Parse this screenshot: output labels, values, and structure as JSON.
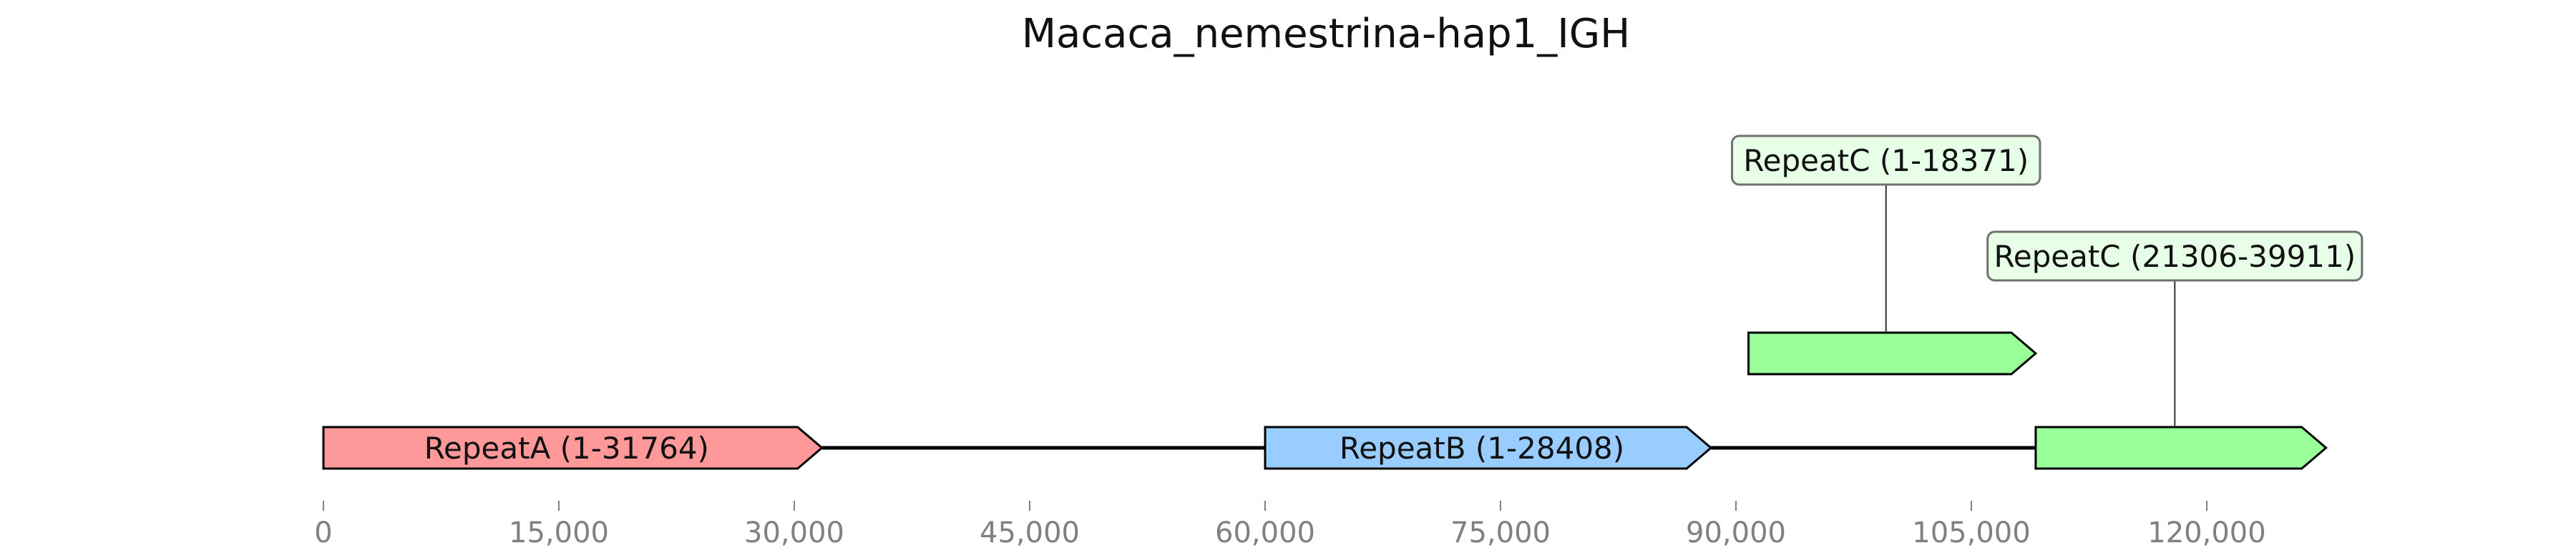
{
  "title": "Macaca_nemestrina-hap1_IGH",
  "colors": {
    "background": "#ffffff",
    "line": "#000000",
    "repeatA": "#ff9999",
    "repeatB": "#99ccff",
    "repeatC": "#99ff99",
    "annotation_box_fill": "#e6ffe6",
    "annotation_box_stroke": "#707070",
    "tick_text": "#808080"
  },
  "chart_data": {
    "type": "diagram",
    "title": "Macaca_nemestrina-hap1_IGH",
    "xlim": [
      0,
      128000
    ],
    "xticks": [
      0,
      15000,
      30000,
      45000,
      60000,
      75000,
      90000,
      105000,
      120000
    ],
    "xtick_labels": [
      "0",
      "15,000",
      "30,000",
      "45,000",
      "60,000",
      "75,000",
      "90,000",
      "105,000",
      "120,000"
    ],
    "baseline_segments": [
      {
        "start": 31764,
        "end": 60000
      },
      {
        "start": 88408,
        "end": 109100
      }
    ],
    "features": [
      {
        "name": "repeatA",
        "label": "RepeatA (1-31764)",
        "start": 0,
        "end": 31764,
        "track": 0,
        "color": "#ff9999",
        "annotation": null
      },
      {
        "name": "repeatB",
        "label": "RepeatB (1-28408)",
        "start": 60000,
        "end": 88408,
        "track": 0,
        "color": "#99ccff",
        "annotation": null
      },
      {
        "name": "repeatC-1",
        "label": "",
        "start": 90800,
        "end": 109100,
        "track": 1,
        "color": "#99ff99",
        "annotation": "RepeatC (1-18371)",
        "annotation_level": 2
      },
      {
        "name": "repeatC-2",
        "label": "",
        "start": 109100,
        "end": 127600,
        "track": 0,
        "color": "#99ff99",
        "annotation": "RepeatC (21306-39911)",
        "annotation_level": 1
      }
    ]
  }
}
